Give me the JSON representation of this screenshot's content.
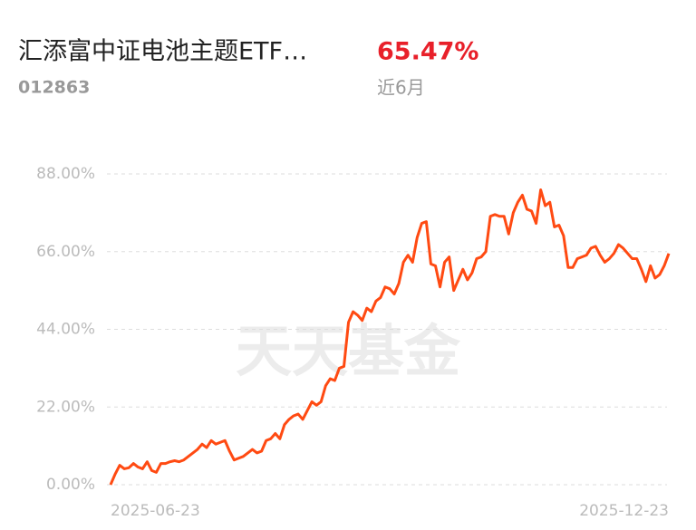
{
  "header": {
    "title": "汇添富中证电池主题ETF…",
    "code": "012863",
    "return": "65.47%",
    "period": "近6月"
  },
  "chart_data": {
    "type": "line",
    "watermark": "天天基金",
    "categories": [
      "2025-06-23",
      null,
      null,
      null,
      null,
      null,
      null,
      null,
      null,
      null,
      null,
      null,
      null,
      null,
      null,
      null,
      null,
      null,
      null,
      null,
      null,
      null,
      null,
      null,
      null,
      null,
      null,
      null,
      null,
      null,
      null,
      null,
      null,
      null,
      null,
      null,
      null,
      null,
      null,
      null,
      null,
      null,
      null,
      null,
      null,
      null,
      null,
      null,
      null,
      null,
      null,
      null,
      null,
      null,
      null,
      null,
      null,
      null,
      null,
      null,
      null,
      null,
      null,
      null,
      null,
      null,
      null,
      null,
      null,
      null,
      null,
      null,
      null,
      null,
      null,
      null,
      null,
      null,
      null,
      null,
      null,
      null,
      null,
      null,
      null,
      null,
      null,
      null,
      null,
      null,
      null,
      null,
      null,
      null,
      null,
      null,
      null,
      null,
      null,
      null,
      null,
      null,
      null,
      null,
      null,
      null,
      null,
      null,
      null,
      null,
      null,
      null,
      null,
      null,
      null,
      null,
      null,
      null,
      null,
      null,
      null,
      null,
      "2025-12-23"
    ],
    "series": [
      {
        "color": "#ff4a12",
        "values": [
          0,
          3,
          5.5,
          4.5,
          4.8,
          6,
          5,
          4.5,
          6.5,
          4,
          3.5,
          6,
          6,
          6.5,
          6.8,
          6.5,
          7,
          8,
          9,
          10,
          11.5,
          10.5,
          12.5,
          11.5,
          12,
          12.5,
          9.5,
          7,
          7.5,
          8,
          9,
          10,
          9,
          9.5,
          12.5,
          13,
          14.5,
          13,
          17,
          18.5,
          19.5,
          20,
          18.5,
          21,
          23.5,
          22.5,
          23.5,
          28,
          30,
          29.5,
          33,
          33.5,
          46,
          49,
          48,
          46.5,
          50,
          49,
          52,
          53,
          56,
          55.5,
          54,
          57,
          63,
          65,
          63,
          70,
          74,
          74.5,
          62.5,
          62,
          56,
          63,
          64.5,
          55,
          58,
          61,
          58,
          60,
          64,
          64.5,
          66,
          76,
          76.5,
          76,
          76,
          71,
          77,
          80,
          82,
          78,
          77.5,
          74,
          83.5,
          79,
          80,
          73,
          73.5,
          70.5,
          61.5,
          61.5,
          64,
          64.5,
          65,
          67,
          67.5,
          65,
          63,
          64,
          65.5,
          68,
          67,
          65.5,
          64,
          64,
          61,
          57.5,
          62,
          58.5,
          59.5,
          62,
          65.47
        ]
      }
    ],
    "ylim": [
      0,
      88
    ],
    "yticks": [
      {
        "value": 0,
        "label": "0.00%"
      },
      {
        "value": 22,
        "label": "22.00%"
      },
      {
        "value": 44,
        "label": "44.00%"
      },
      {
        "value": 66,
        "label": "66.00%"
      },
      {
        "value": 88,
        "label": "88.00%"
      }
    ],
    "grid": true
  }
}
